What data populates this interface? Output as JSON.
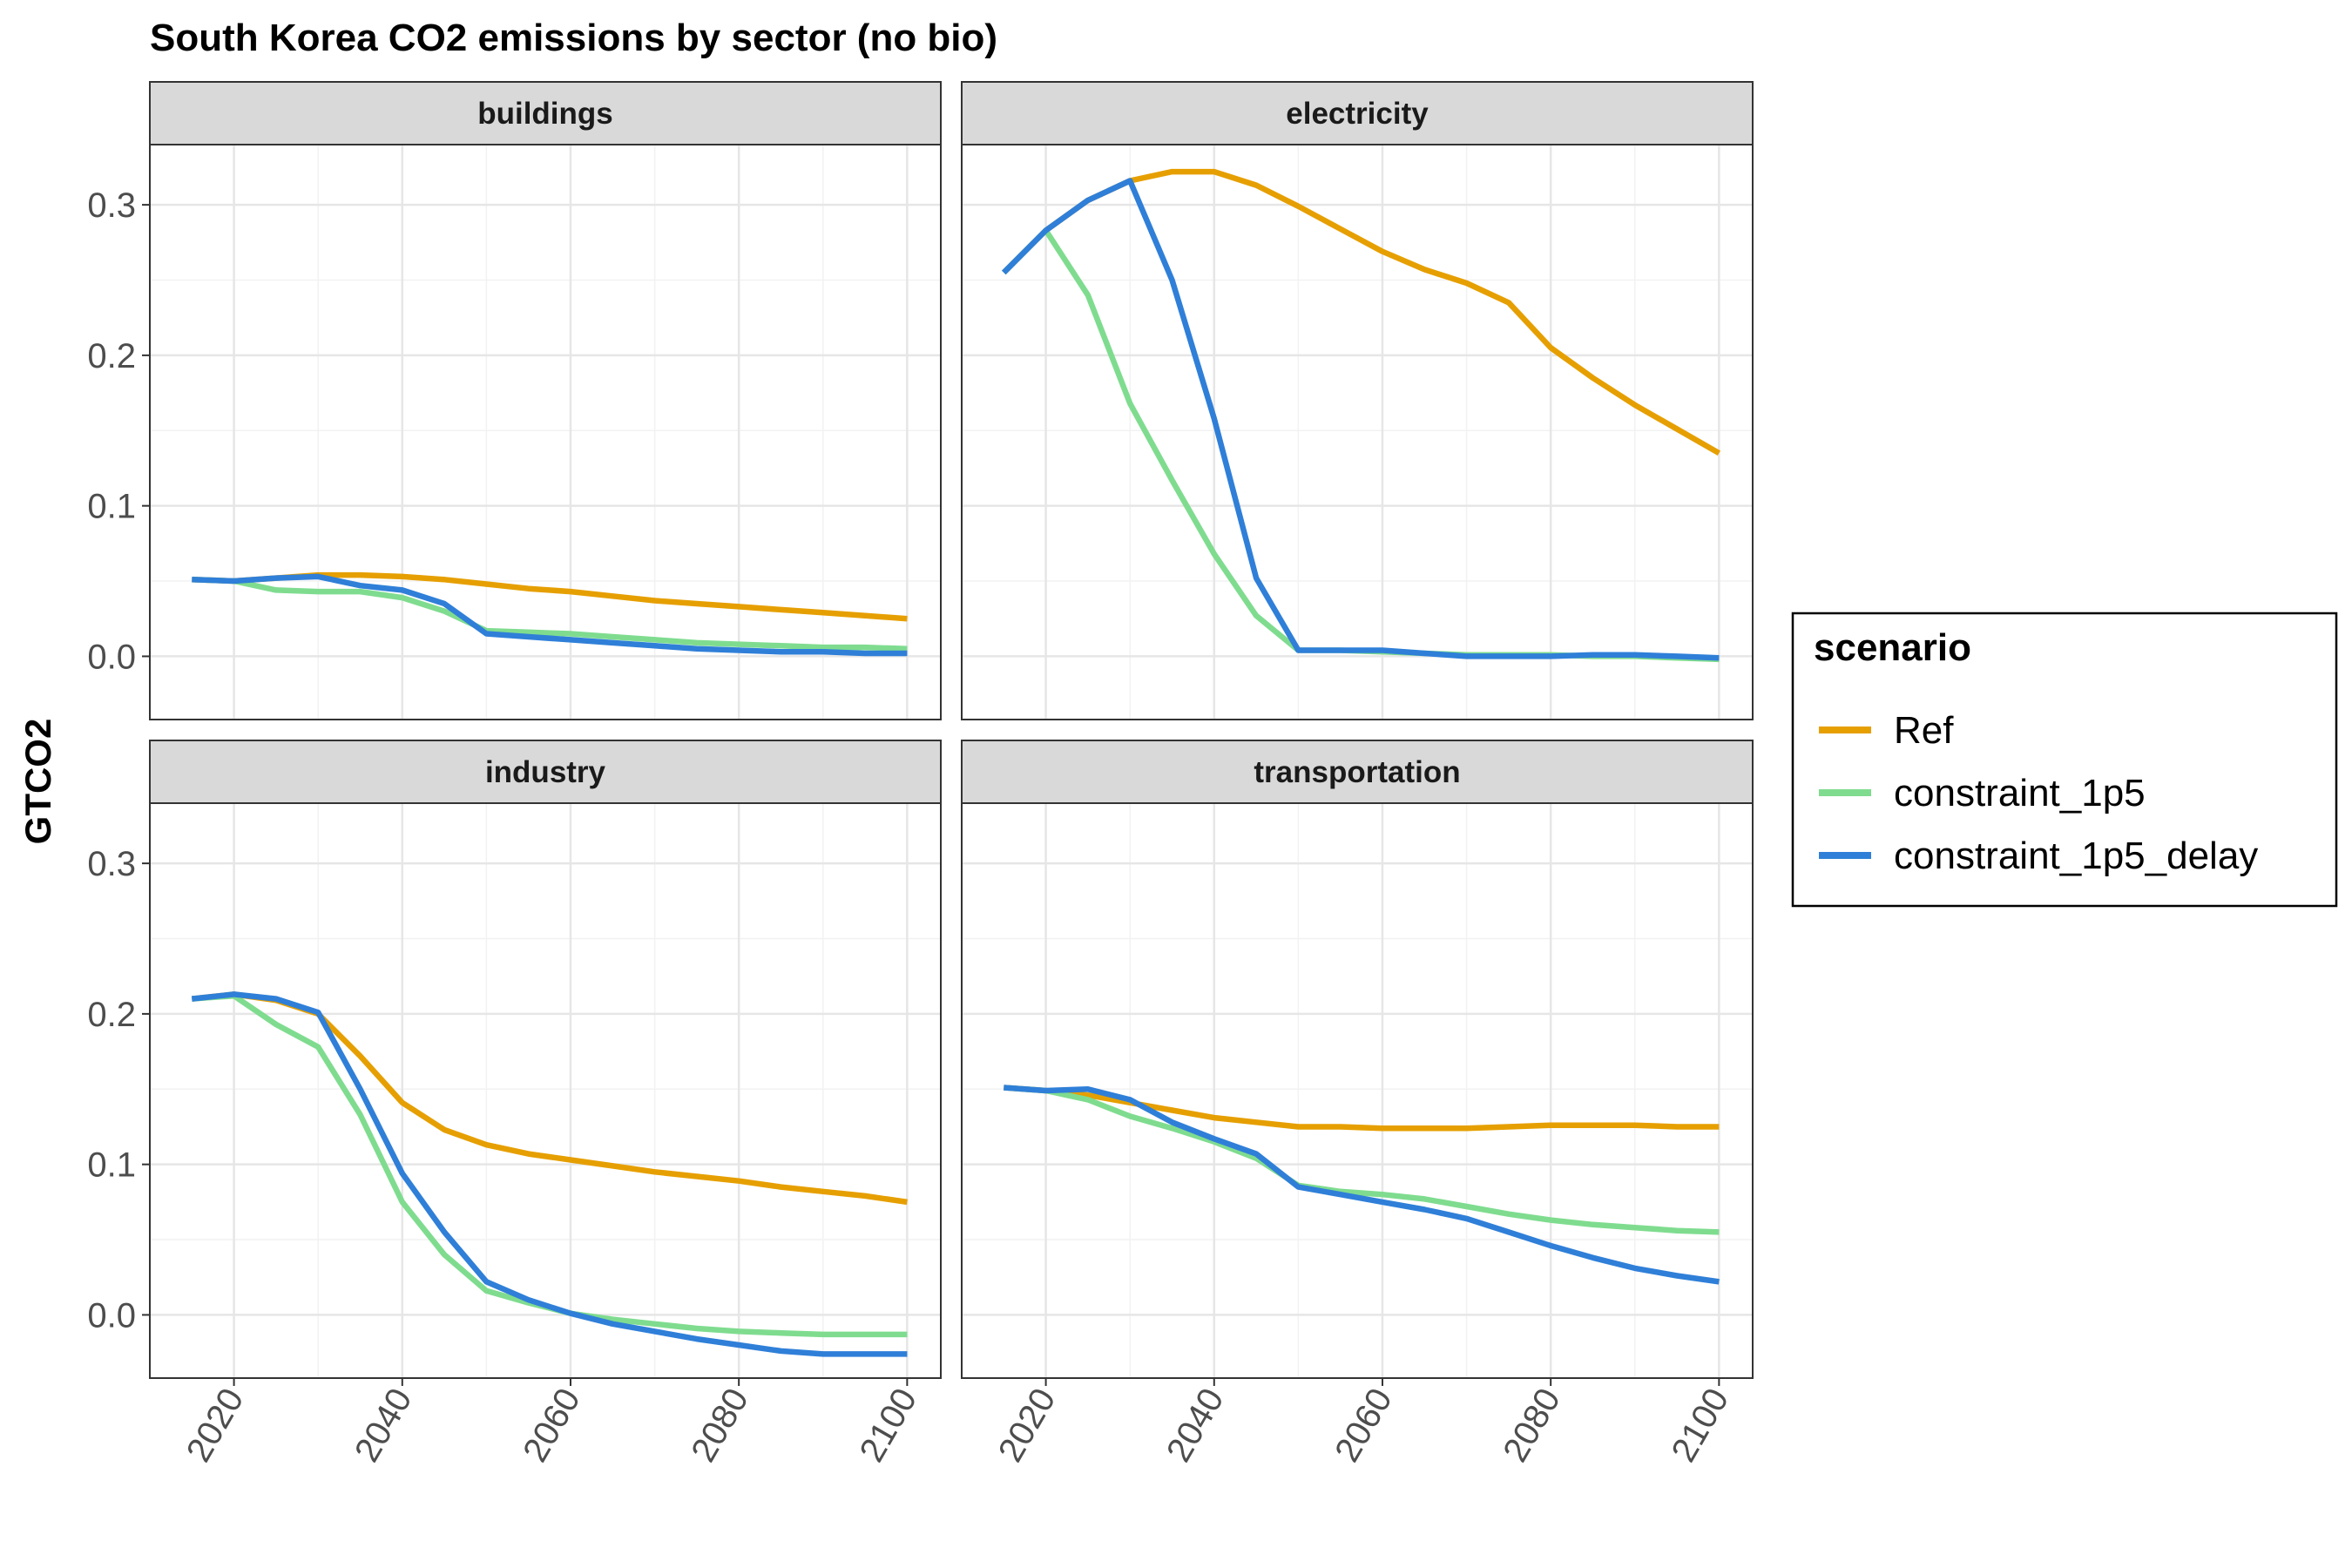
{
  "chart_data": {
    "type": "line",
    "title": "South Korea CO2 emissions by sector (no bio)",
    "ylabel": "GTCO2",
    "xlabel": "",
    "x": [
      2015,
      2020,
      2025,
      2030,
      2035,
      2040,
      2045,
      2050,
      2055,
      2060,
      2065,
      2070,
      2075,
      2080,
      2085,
      2090,
      2095,
      2100
    ],
    "xlim": [
      2010,
      2104
    ],
    "ylim": [
      -0.042,
      0.34
    ],
    "x_ticks": [
      "2020",
      "2040",
      "2060",
      "2080",
      "2100"
    ],
    "y_ticks": [
      "0.0",
      "0.1",
      "0.2",
      "0.3"
    ],
    "grid": true,
    "legend": {
      "title": "scenario",
      "placement": "right",
      "entries": [
        "Ref",
        "constraint_1p5",
        "constraint_1p5_delay"
      ]
    },
    "series_styles": {
      "Ref": "#E69F00",
      "constraint_1p5": "#7FDC8F",
      "constraint_1p5_delay": "#2F7FD8"
    },
    "facets": [
      {
        "name": "buildings",
        "series": [
          {
            "name": "Ref",
            "values": [
              0.051,
              0.05,
              0.052,
              0.054,
              0.054,
              0.053,
              0.051,
              0.048,
              0.045,
              0.043,
              0.04,
              0.037,
              0.035,
              0.033,
              0.031,
              0.029,
              0.027,
              0.025
            ]
          },
          {
            "name": "constraint_1p5",
            "values": [
              0.051,
              0.05,
              0.044,
              0.043,
              0.043,
              0.039,
              0.03,
              0.017,
              0.016,
              0.015,
              0.013,
              0.011,
              0.009,
              0.008,
              0.007,
              0.006,
              0.006,
              0.005
            ]
          },
          {
            "name": "constraint_1p5_delay",
            "values": [
              0.051,
              0.05,
              0.052,
              0.053,
              0.047,
              0.044,
              0.035,
              0.015,
              0.013,
              0.011,
              0.009,
              0.007,
              0.005,
              0.004,
              0.003,
              0.003,
              0.002,
              0.002
            ]
          }
        ]
      },
      {
        "name": "electricity",
        "series": [
          {
            "name": "Ref",
            "values": [
              0.255,
              0.283,
              0.303,
              0.316,
              0.322,
              0.322,
              0.313,
              0.299,
              0.284,
              0.269,
              0.257,
              0.248,
              0.235,
              0.205,
              0.185,
              0.167,
              0.151,
              0.135
            ]
          },
          {
            "name": "constraint_1p5",
            "values": [
              0.255,
              0.283,
              0.24,
              0.168,
              0.117,
              0.068,
              0.027,
              0.004,
              0.004,
              0.003,
              0.002,
              0.001,
              0.001,
              0.001,
              0.0,
              0.0,
              -0.001,
              -0.002
            ]
          },
          {
            "name": "constraint_1p5_delay",
            "values": [
              0.255,
              0.283,
              0.303,
              0.316,
              0.25,
              0.158,
              0.052,
              0.004,
              0.004,
              0.004,
              0.002,
              0.0,
              0.0,
              0.0,
              0.001,
              0.001,
              0.0,
              -0.001
            ]
          }
        ]
      },
      {
        "name": "industry",
        "series": [
          {
            "name": "Ref",
            "values": [
              0.21,
              0.213,
              0.209,
              0.2,
              0.172,
              0.141,
              0.123,
              0.113,
              0.107,
              0.103,
              0.099,
              0.095,
              0.092,
              0.089,
              0.085,
              0.082,
              0.079,
              0.075
            ]
          },
          {
            "name": "constraint_1p5",
            "values": [
              0.21,
              0.212,
              0.193,
              0.178,
              0.133,
              0.075,
              0.04,
              0.016,
              0.008,
              0.001,
              -0.003,
              -0.006,
              -0.009,
              -0.011,
              -0.012,
              -0.013,
              -0.013,
              -0.013
            ]
          },
          {
            "name": "constraint_1p5_delay",
            "values": [
              0.21,
              0.213,
              0.21,
              0.201,
              0.15,
              0.094,
              0.055,
              0.022,
              0.01,
              0.001,
              -0.006,
              -0.011,
              -0.016,
              -0.02,
              -0.024,
              -0.026,
              -0.026,
              -0.026
            ]
          }
        ]
      },
      {
        "name": "transportation",
        "series": [
          {
            "name": "Ref",
            "values": [
              0.151,
              0.149,
              0.146,
              0.141,
              0.136,
              0.131,
              0.128,
              0.125,
              0.125,
              0.124,
              0.124,
              0.124,
              0.125,
              0.126,
              0.126,
              0.126,
              0.125,
              0.125
            ]
          },
          {
            "name": "constraint_1p5",
            "values": [
              0.151,
              0.149,
              0.143,
              0.132,
              0.124,
              0.115,
              0.104,
              0.086,
              0.082,
              0.08,
              0.077,
              0.072,
              0.067,
              0.063,
              0.06,
              0.058,
              0.056,
              0.055
            ]
          },
          {
            "name": "constraint_1p5_delay",
            "values": [
              0.151,
              0.149,
              0.15,
              0.143,
              0.128,
              0.117,
              0.107,
              0.085,
              0.08,
              0.075,
              0.07,
              0.064,
              0.055,
              0.046,
              0.038,
              0.031,
              0.026,
              0.022
            ]
          }
        ]
      }
    ]
  }
}
